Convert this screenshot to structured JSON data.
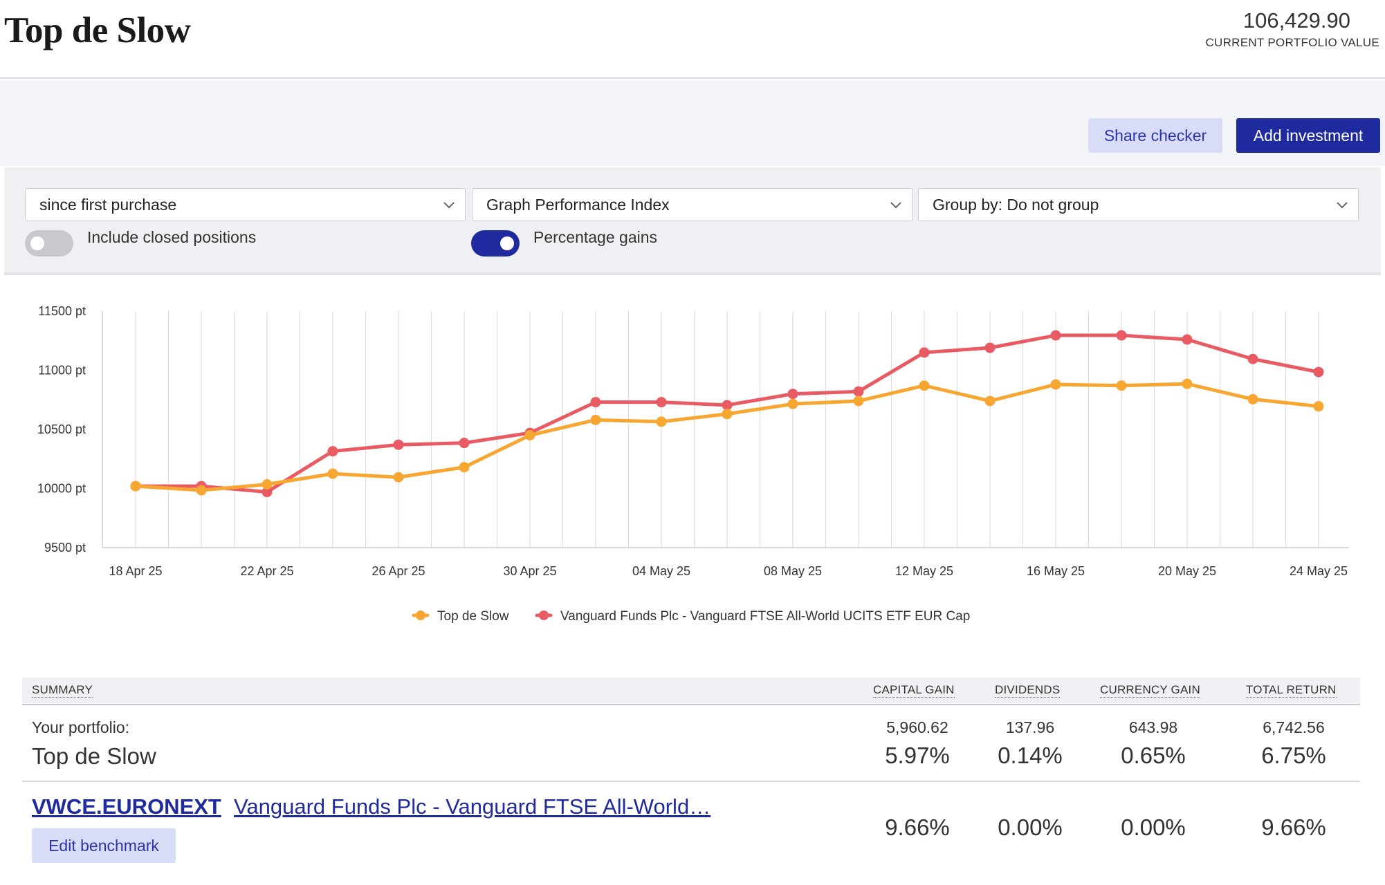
{
  "header": {
    "title": "Top de Slow",
    "portfolio_value": "106,429.90",
    "portfolio_value_label": "CURRENT PORTFOLIO VALUE"
  },
  "actions": {
    "share_checker": "Share checker",
    "add_investment": "Add investment"
  },
  "filters": {
    "period": "since first purchase",
    "graph_type": "Graph Performance Index",
    "group_by": "Group by: Do not group",
    "include_closed_label": "Include closed positions",
    "include_closed": false,
    "percentage_gains_label": "Percentage gains",
    "percentage_gains": true
  },
  "colors": {
    "accent": "#1f2a9e",
    "portfolio_series": "#f7a731",
    "benchmark_series": "#e85b63"
  },
  "chart_data": {
    "type": "line",
    "title": "",
    "xlabel": "",
    "ylabel": "",
    "ylim": [
      9500,
      11500
    ],
    "yticks": [
      "11500 pt",
      "11000 pt",
      "10500 pt",
      "10000 pt",
      "9500 pt"
    ],
    "ytick_values": [
      11500,
      11000,
      10500,
      10000,
      9500
    ],
    "xticks": [
      "18 Apr 25",
      "22 Apr 25",
      "26 Apr 25",
      "30 Apr 25",
      "04 May 25",
      "08 May 25",
      "12 May 25",
      "16 May 25",
      "20 May 25",
      "24 May 25"
    ],
    "grid": true,
    "legend_placement": "bottom-center",
    "x": [
      "18 Apr 25",
      "20 Apr 25",
      "22 Apr 25",
      "24 Apr 25",
      "26 Apr 25",
      "28 Apr 25",
      "30 Apr 25",
      "02 May 25",
      "04 May 25",
      "06 May 25",
      "08 May 25",
      "10 May 25",
      "12 May 25",
      "14 May 25",
      "16 May 25",
      "18 May 25",
      "20 May 25",
      "22 May 25",
      "24 May 25"
    ],
    "series": [
      {
        "name": "Top de Slow",
        "color": "#f7a731",
        "values": [
          10020,
          9985,
          10035,
          10125,
          10095,
          10180,
          10450,
          10580,
          10565,
          10630,
          10715,
          10740,
          10870,
          10740,
          10880,
          10870,
          10885,
          10755,
          10695
        ]
      },
      {
        "name": "Vanguard Funds Plc - Vanguard FTSE All-World UCITS ETF EUR Cap",
        "color": "#e85b63",
        "values": [
          10020,
          10020,
          9970,
          10315,
          10370,
          10385,
          10470,
          10730,
          10730,
          10705,
          10800,
          10820,
          11150,
          11190,
          11295,
          11295,
          11260,
          11095,
          10985
        ]
      }
    ]
  },
  "summary": {
    "headers": {
      "summary": "SUMMARY",
      "capital_gain": "CAPITAL GAIN",
      "dividends": "DIVIDENDS",
      "currency_gain": "CURRENCY GAIN",
      "total_return": "TOTAL RETURN"
    },
    "portfolio": {
      "label_small": "Your portfolio:",
      "label_big": "Top de Slow",
      "capital_gain_abs": "5,960.62",
      "dividends_abs": "137.96",
      "currency_gain_abs": "643.98",
      "total_return_abs": "6,742.56",
      "capital_gain_pct": "5.97%",
      "dividends_pct": "0.14%",
      "currency_gain_pct": "0.65%",
      "total_return_pct": "6.75%"
    },
    "benchmark": {
      "ticker": "VWCE.EURONEXT",
      "name": "Vanguard Funds Plc - Vanguard FTSE All-World…",
      "edit_label": "Edit benchmark",
      "capital_gain_pct": "9.66%",
      "dividends_pct": "0.00%",
      "currency_gain_pct": "0.00%",
      "total_return_pct": "9.66%"
    }
  }
}
